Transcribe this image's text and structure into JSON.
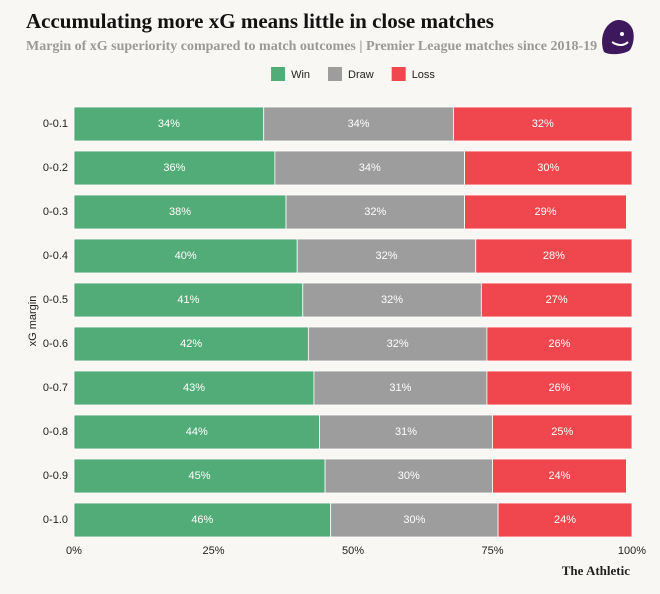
{
  "chart_data": {
    "type": "bar",
    "orientation": "horizontal",
    "stacked": true,
    "title": "Accumulating more xG means little in close matches",
    "subtitle": "Margin of xG superiority compared to match outcomes | Premier League matches since 2018-19",
    "y_label": "xG margin",
    "source": "The Athletic",
    "legend": "top",
    "categories": [
      "0-0.1",
      "0-0.2",
      "0-0.3",
      "0-0.4",
      "0-0.5",
      "0-0.6",
      "0-0.7",
      "0-0.8",
      "0-0.9",
      "0-1.0"
    ],
    "series": [
      {
        "name": "Win",
        "color": "#52ac77",
        "values": [
          34,
          36,
          38,
          40,
          41,
          42,
          43,
          44,
          45,
          46
        ],
        "value_labels": [
          "34%",
          "36%",
          "38%",
          "40%",
          "41%",
          "42%",
          "43%",
          "44%",
          "45%",
          "46%"
        ]
      },
      {
        "name": "Draw",
        "color": "#9d9d9d",
        "values": [
          34,
          34,
          32,
          32,
          32,
          32,
          31,
          31,
          30,
          30
        ],
        "value_labels": [
          "34%",
          "34%",
          "32%",
          "32%",
          "32%",
          "32%",
          "31%",
          "31%",
          "30%",
          "30%"
        ]
      },
      {
        "name": "Loss",
        "color": "#ef474d",
        "values": [
          32,
          30,
          29,
          28,
          27,
          26,
          26,
          25,
          24,
          24
        ],
        "value_labels": [
          "32%",
          "30%",
          "29%",
          "28%",
          "27%",
          "26%",
          "26%",
          "25%",
          "24%",
          "24%"
        ]
      }
    ],
    "xlim": [
      0,
      100
    ],
    "xticks": [
      {
        "value": 0,
        "label": "0%"
      },
      {
        "value": 25,
        "label": "25%"
      },
      {
        "value": 50,
        "label": "50%"
      },
      {
        "value": 75,
        "label": "75%"
      },
      {
        "value": 100,
        "label": "100%"
      }
    ]
  }
}
